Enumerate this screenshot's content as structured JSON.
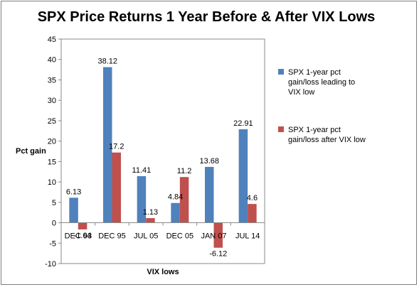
{
  "chart_data": {
    "type": "bar",
    "title": "SPX Price Returns 1 Year Before & After VIX Lows",
    "xlabel": "VIX lows",
    "ylabel": "Pct gain",
    "categories": [
      "DEC 93",
      "DEC 95",
      "JUL 05",
      "DEC 05",
      "JAN 07",
      "JUL 14"
    ],
    "ylim": [
      -10,
      45
    ],
    "yticks": [
      -10,
      -5,
      0,
      5,
      10,
      15,
      20,
      25,
      30,
      35,
      40,
      45
    ],
    "grid": false,
    "legend_position": "right",
    "series": [
      {
        "name": "SPX 1-year pct gain/loss leading to VIX low",
        "legend_lines": [
          "SPX 1-year pct",
          "gain/loss leading to",
          "VIX low"
        ],
        "color": "#4f81bd",
        "values": [
          6.13,
          38.12,
          11.41,
          4.84,
          13.68,
          22.91
        ],
        "labels": [
          "6.13",
          "38.12",
          "11.41",
          "4.84",
          "13.68",
          "22.91"
        ]
      },
      {
        "name": "SPX 1-year pct gain/loss after VIX low",
        "legend_lines": [
          "SPX 1-year pct",
          "gain/loss after VIX low"
        ],
        "color": "#c0504d",
        "values": [
          -1.64,
          17.2,
          1.13,
          11.2,
          -6.12,
          4.6
        ],
        "labels": [
          "-1.64",
          "17.2",
          "1.13",
          "11.2",
          "-6.12",
          "4.6"
        ]
      }
    ]
  }
}
